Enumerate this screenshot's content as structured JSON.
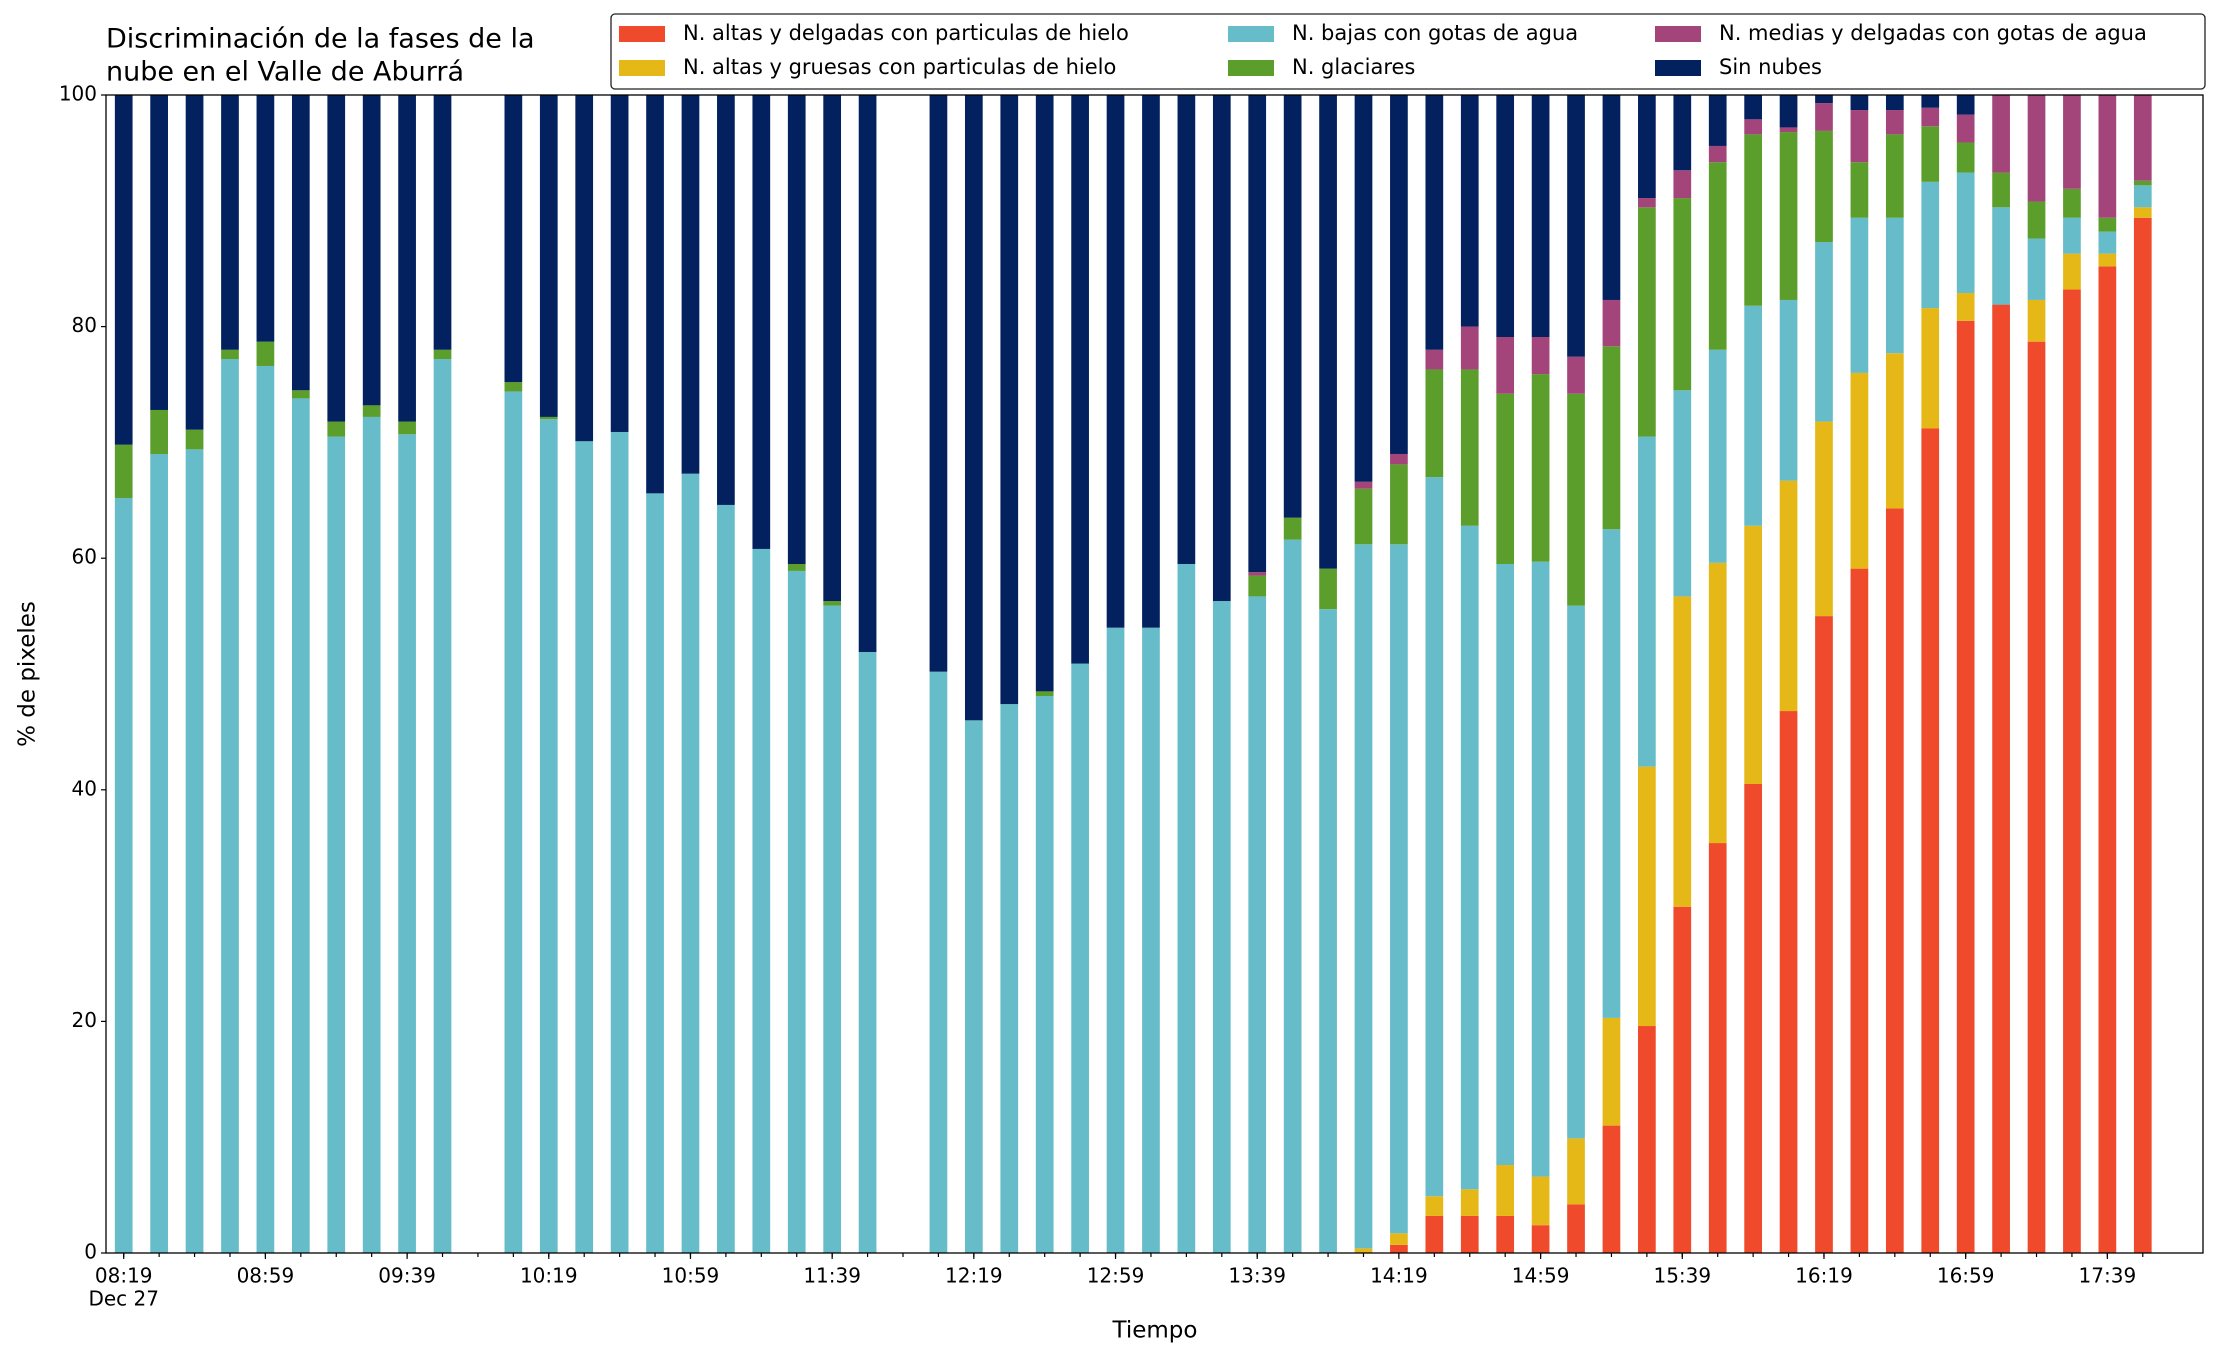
{
  "chart_data": {
    "type": "stacked_bar",
    "title": [
      "Discriminación de la fases de la",
      "nube en el Valle de Aburrá"
    ],
    "xlabel": "Tiempo",
    "ylabel": "% de pixeles",
    "x": [
      "08:19",
      "08:29",
      "08:39",
      "08:49",
      "08:59",
      "09:09",
      "09:19",
      "09:29",
      "09:39",
      "09:49",
      "09:59",
      "10:09",
      "10:19",
      "10:29",
      "10:39",
      "10:49",
      "10:59",
      "11:09",
      "11:19",
      "11:29",
      "11:39",
      "11:49",
      "11:59",
      "12:09",
      "12:19",
      "12:29",
      "12:39",
      "12:49",
      "12:59",
      "13:09",
      "13:19",
      "13:29",
      "13:39",
      "13:49",
      "13:59",
      "14:09",
      "14:19",
      "14:29",
      "14:39",
      "14:49",
      "14:59",
      "15:09",
      "15:19",
      "15:29",
      "15:39",
      "15:49",
      "15:59",
      "16:09",
      "16:19",
      "16:29",
      "16:39",
      "16:49",
      "16:59",
      "17:09",
      "17:19",
      "17:29",
      "17:39",
      "17:49"
    ],
    "xlim": [
      "08:14",
      "18:06"
    ],
    "xticks": [
      "08:19",
      "08:59",
      "09:39",
      "10:19",
      "10:59",
      "11:39",
      "12:19",
      "12:59",
      "13:39",
      "14:19",
      "14:59",
      "15:39",
      "16:19",
      "16:59",
      "17:39"
    ],
    "xtick_sublabel": "Dec 27",
    "ylim": [
      0,
      100
    ],
    "yticks": [
      0,
      20,
      40,
      60,
      80,
      100
    ],
    "legend": "upper right",
    "series": [
      {
        "name": "N. altas y delgadas con particulas de hielo",
        "color": "#ee4a2b",
        "values": [
          0,
          0,
          0,
          0,
          0,
          0,
          0,
          0,
          0,
          0,
          null,
          0,
          0,
          0,
          0,
          0,
          0,
          0,
          0,
          0,
          0,
          0,
          null,
          0,
          0,
          0,
          0,
          0,
          0,
          0,
          0,
          0,
          0,
          0,
          0,
          0,
          0.7,
          3.2,
          3.2,
          3.2,
          2.4,
          4.2,
          11.0,
          19.6,
          29.9,
          35.4,
          40.5,
          46.8,
          55.0,
          59.1,
          64.3,
          71.2,
          80.5,
          81.9,
          78.7,
          83.2,
          85.2,
          89.4
        ]
      },
      {
        "name": "N. altas y gruesas con particulas de hielo",
        "color": "#e5b818",
        "values": [
          0,
          0,
          0,
          0,
          0,
          0,
          0,
          0,
          0,
          0,
          null,
          0,
          0,
          0,
          0,
          0,
          0,
          0,
          0,
          0,
          0,
          0,
          null,
          0,
          0,
          0,
          0,
          0,
          0,
          0,
          0,
          0,
          0,
          0,
          0,
          0.4,
          1.0,
          1.7,
          2.3,
          4.4,
          4.2,
          5.7,
          9.3,
          22.4,
          26.8,
          24.2,
          22.3,
          19.9,
          16.8,
          16.9,
          13.4,
          10.4,
          2.4,
          0,
          3.6,
          3.1,
          1.1,
          0.9
        ]
      },
      {
        "name": "N. bajas con gotas de agua",
        "color": "#66bdc9",
        "values": [
          65.2,
          69.0,
          69.4,
          77.2,
          76.6,
          73.8,
          70.5,
          72.2,
          70.7,
          77.2,
          null,
          74.4,
          72.0,
          70.1,
          70.9,
          65.6,
          67.3,
          64.6,
          60.8,
          58.9,
          55.9,
          51.9,
          null,
          50.2,
          46.0,
          47.4,
          48.1,
          50.9,
          54.0,
          54.0,
          59.5,
          56.3,
          56.7,
          61.6,
          55.6,
          60.8,
          59.5,
          62.1,
          57.3,
          51.9,
          53.1,
          46.0,
          42.2,
          28.5,
          17.8,
          18.4,
          19.0,
          15.6,
          15.5,
          13.4,
          11.7,
          10.9,
          10.4,
          8.4,
          5.3,
          3.1,
          1.9,
          1.9
        ]
      },
      {
        "name": "N. glaciares",
        "color": "#5c9e2c",
        "values": [
          4.6,
          3.8,
          1.7,
          0.8,
          2.1,
          0.7,
          1.3,
          1.0,
          1.1,
          0.8,
          null,
          0.8,
          0.2,
          0,
          0,
          0,
          0,
          0,
          0,
          0.6,
          0.4,
          0,
          null,
          0,
          0,
          0,
          0.4,
          0,
          0,
          0,
          0,
          0,
          1.8,
          1.9,
          3.5,
          4.8,
          6.9,
          9.3,
          13.5,
          14.7,
          16.2,
          18.3,
          15.8,
          19.8,
          16.6,
          16.2,
          14.8,
          14.5,
          9.6,
          4.8,
          7.2,
          4.8,
          2.6,
          3.0,
          3.2,
          2.5,
          1.2,
          0.4
        ]
      },
      {
        "name": "N. medias y delgadas con gotas de agua",
        "color": "#a3457a",
        "values": [
          0,
          0,
          0,
          0,
          0,
          0,
          0,
          0,
          0,
          0,
          null,
          0,
          0,
          0,
          0,
          0,
          0,
          0,
          0,
          0,
          0,
          0,
          null,
          0,
          0,
          0,
          0,
          0,
          0,
          0,
          0,
          0,
          0.3,
          0,
          0,
          0.6,
          0.9,
          1.7,
          3.7,
          4.9,
          3.2,
          3.2,
          4.0,
          0.8,
          2.4,
          1.4,
          1.3,
          0.4,
          2.4,
          4.5,
          2.1,
          1.6,
          2.4,
          6.7,
          9.2,
          8.1,
          10.6,
          7.4
        ]
      },
      {
        "name": "Sin nubes",
        "color": "#03215e",
        "values": [
          30.2,
          27.2,
          28.9,
          22.0,
          21.3,
          25.5,
          28.2,
          26.8,
          28.2,
          22.0,
          null,
          24.8,
          27.8,
          29.9,
          29.1,
          34.4,
          32.7,
          35.4,
          39.2,
          40.5,
          43.7,
          48.1,
          null,
          49.8,
          54.0,
          52.6,
          51.5,
          49.1,
          46.0,
          46.0,
          40.5,
          43.7,
          41.2,
          36.5,
          40.9,
          33.4,
          31.0,
          22.0,
          20.0,
          20.9,
          20.9,
          22.6,
          17.7,
          8.9,
          6.5,
          4.4,
          2.1,
          2.8,
          0.7,
          1.3,
          1.3,
          1.1,
          1.7,
          0,
          0,
          0,
          0,
          0
        ]
      }
    ]
  }
}
